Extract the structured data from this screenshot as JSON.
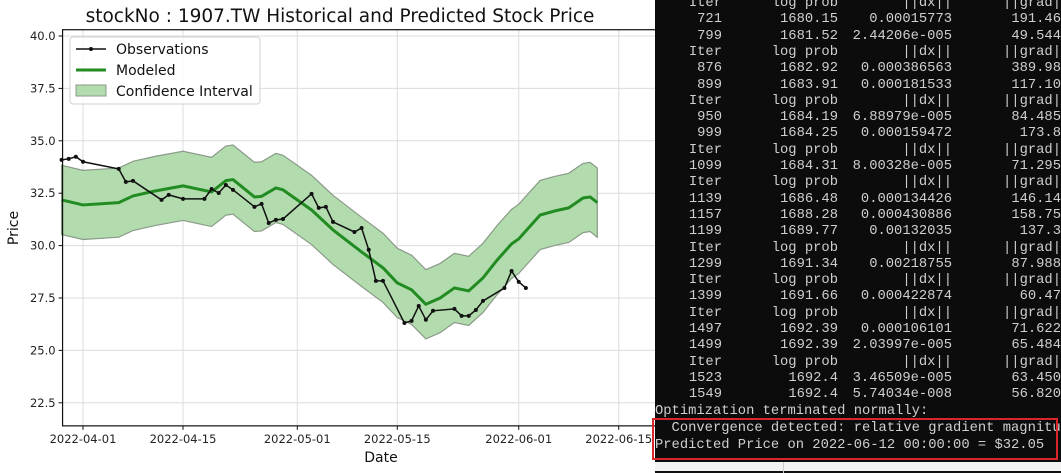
{
  "chart_data": {
    "type": "line",
    "title": "stockNo : 1907.TW Historical and Predicted Stock Price",
    "xlabel": "Date",
    "ylabel": "Price",
    "xlim": [
      "2022-03-29",
      "2022-06-28"
    ],
    "ylim": [
      21.4,
      40.3
    ],
    "grid": true,
    "legend_placement": "top-left",
    "x_ticks": [
      "2022-04-01",
      "2022-04-15",
      "2022-05-01",
      "2022-05-15",
      "2022-06-01",
      "2022-06-15"
    ],
    "y_ticks": [
      "22.5",
      "25.0",
      "27.5",
      "30.0",
      "32.5",
      "35.0",
      "37.5",
      "40.0"
    ],
    "legend": [
      "Observations",
      "Modeled",
      "Confidence Interval"
    ],
    "colors": {
      "observations": "#111111",
      "modeled": "#228b22",
      "ci_fill": "#b2dcae",
      "ci_edge": "#8a9a88"
    },
    "observations": {
      "x": [
        "2022-03-29",
        "2022-03-30",
        "2022-03-31",
        "2022-04-01",
        "2022-04-06",
        "2022-04-07",
        "2022-04-08",
        "2022-04-12",
        "2022-04-13",
        "2022-04-15",
        "2022-04-18",
        "2022-04-19",
        "2022-04-20",
        "2022-04-21",
        "2022-04-22",
        "2022-04-25",
        "2022-04-26",
        "2022-04-27",
        "2022-04-28",
        "2022-04-29",
        "2022-05-03",
        "2022-05-04",
        "2022-05-05",
        "2022-05-06",
        "2022-05-09",
        "2022-05-10",
        "2022-05-11",
        "2022-05-12",
        "2022-05-13",
        "2022-05-16",
        "2022-05-17",
        "2022-05-18",
        "2022-05-19",
        "2022-05-20",
        "2022-05-23",
        "2022-05-24",
        "2022-05-25",
        "2022-05-26",
        "2022-05-27",
        "2022-05-30",
        "2022-05-31",
        "2022-06-01",
        "2022-06-02"
      ],
      "y": [
        34.09,
        34.14,
        34.24,
        34.0,
        33.66,
        33.04,
        33.09,
        32.18,
        32.42,
        32.23,
        32.23,
        32.7,
        32.51,
        32.89,
        32.66,
        31.85,
        31.99,
        31.08,
        31.23,
        31.27,
        32.47,
        31.8,
        31.85,
        31.13,
        30.65,
        30.84,
        29.8,
        28.32,
        28.32,
        26.31,
        26.41,
        27.12,
        26.46,
        26.89,
        26.98,
        26.65,
        26.65,
        26.93,
        27.36,
        27.98,
        28.79,
        28.27,
        27.98
      ]
    },
    "modeled": {
      "x": [
        "2022-03-29",
        "2022-04-01",
        "2022-04-06",
        "2022-04-08",
        "2022-04-11",
        "2022-04-15",
        "2022-04-19",
        "2022-04-21",
        "2022-04-22",
        "2022-04-25",
        "2022-04-26",
        "2022-04-28",
        "2022-04-29",
        "2022-05-03",
        "2022-05-06",
        "2022-05-10",
        "2022-05-13",
        "2022-05-15",
        "2022-05-17",
        "2022-05-19",
        "2022-05-21",
        "2022-05-23",
        "2022-05-25",
        "2022-05-27",
        "2022-05-29",
        "2022-05-31",
        "2022-06-01",
        "2022-06-04",
        "2022-06-06",
        "2022-06-08",
        "2022-06-10",
        "2022-06-11",
        "2022-06-12"
      ],
      "y": [
        32.18,
        31.94,
        32.05,
        32.37,
        32.6,
        32.85,
        32.56,
        33.1,
        33.15,
        32.32,
        32.35,
        32.75,
        32.66,
        31.7,
        30.75,
        29.7,
        28.94,
        28.22,
        27.89,
        27.2,
        27.5,
        27.98,
        27.84,
        28.46,
        29.32,
        30.08,
        30.32,
        31.46,
        31.65,
        31.8,
        32.27,
        32.32,
        32.05
      ],
      "ci_halfwidth": 1.65
    }
  },
  "terminal": {
    "rows": [
      [
        "Iter",
        "log prob",
        "||dx||",
        "||grad|"
      ],
      [
        "721",
        "1680.15",
        "0.00015773",
        "191.46"
      ],
      [
        "799",
        "1681.52",
        "2.44206e-005",
        "49.544"
      ],
      [
        "Iter",
        "log prob",
        "||dx||",
        "||grad|"
      ],
      [
        "876",
        "1682.92",
        "0.000386563",
        "389.98"
      ],
      [
        "899",
        "1683.91",
        "0.000181533",
        "117.10"
      ],
      [
        "Iter",
        "log prob",
        "||dx||",
        "||grad|"
      ],
      [
        "950",
        "1684.19",
        "6.88979e-005",
        "84.485"
      ],
      [
        "999",
        "1684.25",
        "0.000159472",
        "173.8"
      ],
      [
        "Iter",
        "log prob",
        "||dx||",
        "||grad|"
      ],
      [
        "1099",
        "1684.31",
        "8.00328e-005",
        "71.295"
      ],
      [
        "Iter",
        "log prob",
        "||dx||",
        "||grad|"
      ],
      [
        "1139",
        "1686.48",
        "0.000134426",
        "146.14"
      ],
      [
        "1157",
        "1688.28",
        "0.000430886",
        "158.75"
      ],
      [
        "1199",
        "1689.77",
        "0.00132035",
        "137.3"
      ],
      [
        "Iter",
        "log prob",
        "||dx||",
        "||grad|"
      ],
      [
        "1299",
        "1691.34",
        "0.00218755",
        "87.988"
      ],
      [
        "Iter",
        "log prob",
        "||dx||",
        "||grad|"
      ],
      [
        "1399",
        "1691.66",
        "0.000422874",
        "60.47"
      ],
      [
        "Iter",
        "log prob",
        "||dx||",
        "||grad|"
      ],
      [
        "1497",
        "1692.39",
        "0.000106101",
        "71.622"
      ],
      [
        "1499",
        "1692.39",
        "2.03997e-005",
        "65.484"
      ],
      [
        "Iter",
        "log prob",
        "||dx||",
        "||grad|"
      ],
      [
        "1523",
        "1692.4",
        "3.46509e-005",
        "63.450"
      ],
      [
        "1549",
        "1692.4",
        "5.74034e-008",
        "56.820"
      ]
    ],
    "status": "Optimization terminated normally:",
    "convergence": "  Convergence detected: relative gradient magnitu",
    "prediction": "Predicted Price on 2022-06-12 00:00:00 = $32.05",
    "highlight_color": "#d9262b"
  }
}
